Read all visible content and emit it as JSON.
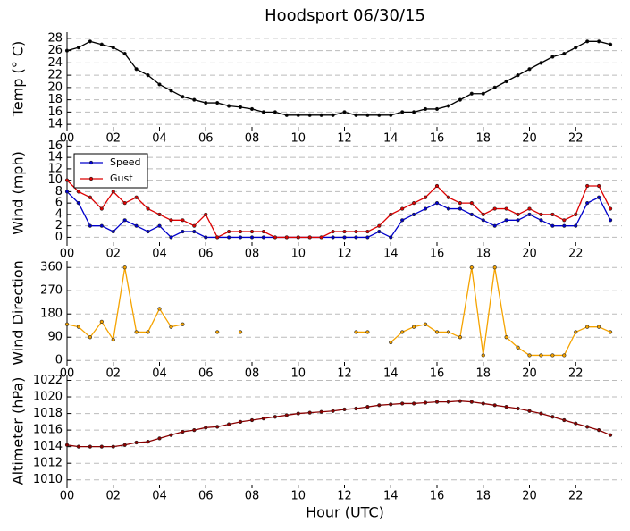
{
  "chart_data": [
    {
      "type": "line",
      "title": "Hoodsport 06/30/15",
      "ylabel": "Temp (° C)",
      "x": [
        0,
        0.5,
        1,
        1.5,
        2,
        2.5,
        3,
        3.5,
        4,
        4.5,
        5,
        5.5,
        6,
        6.5,
        7,
        7.5,
        8,
        8.5,
        9,
        9.5,
        10,
        10.5,
        11,
        11.5,
        12,
        12.5,
        13,
        13.5,
        14,
        14.5,
        15,
        15.5,
        16,
        16.5,
        17,
        17.5,
        18,
        18.5,
        19,
        19.5,
        20,
        20.5,
        21,
        21.5,
        22,
        22.5,
        23,
        23.5
      ],
      "series": [
        {
          "name": "Temp",
          "color": "#000000",
          "values": [
            26,
            26.5,
            27.5,
            27,
            26.5,
            25.5,
            23,
            22,
            20.5,
            19.5,
            18.5,
            18,
            17.5,
            17.5,
            17,
            16.8,
            16.5,
            16,
            16,
            15.5,
            15.5,
            15.5,
            15.5,
            15.5,
            16,
            15.5,
            15.5,
            15.5,
            15.5,
            16,
            16,
            16.5,
            16.5,
            17,
            18,
            19,
            19,
            20,
            21,
            22,
            23,
            24,
            25,
            25.5,
            26.5,
            27.5,
            27.5,
            27
          ]
        }
      ],
      "xlim": [
        0,
        24
      ],
      "xticks": [
        {
          "value": 0,
          "label": "00"
        },
        {
          "value": 2,
          "label": "02"
        },
        {
          "value": 4,
          "label": "04"
        },
        {
          "value": 6,
          "label": "06"
        },
        {
          "value": 8,
          "label": "08"
        },
        {
          "value": 10,
          "label": "10"
        },
        {
          "value": 12,
          "label": "12"
        },
        {
          "value": 14,
          "label": "14"
        },
        {
          "value": 16,
          "label": "16"
        },
        {
          "value": 18,
          "label": "18"
        },
        {
          "value": 20,
          "label": "20"
        },
        {
          "value": 22,
          "label": "22"
        }
      ],
      "ylim": [
        13,
        29
      ],
      "yticks": [
        14,
        16,
        18,
        20,
        22,
        24,
        26,
        28
      ],
      "grid": true
    },
    {
      "type": "line",
      "ylabel": "Wind (mph)",
      "legend": "upper left",
      "x": [
        0,
        0.5,
        1,
        1.5,
        2,
        2.5,
        3,
        3.5,
        4,
        4.5,
        5,
        5.5,
        6,
        6.5,
        7,
        7.5,
        8,
        8.5,
        9,
        9.5,
        10,
        10.5,
        11,
        11.5,
        12,
        12.5,
        13,
        13.5,
        14,
        14.5,
        15,
        15.5,
        16,
        16.5,
        17,
        17.5,
        18,
        18.5,
        19,
        19.5,
        20,
        20.5,
        21,
        21.5,
        22,
        22.5,
        23,
        23.5
      ],
      "series": [
        {
          "name": "Speed",
          "color": "#0000cc",
          "values": [
            8,
            6,
            2,
            2,
            1,
            3,
            2,
            1,
            2,
            0,
            1,
            1,
            0,
            0,
            0,
            0,
            0,
            0,
            0,
            0,
            0,
            0,
            0,
            0,
            0,
            0,
            0,
            1,
            0,
            3,
            4,
            5,
            6,
            5,
            5,
            4,
            3,
            2,
            3,
            3,
            4,
            3,
            2,
            2,
            2,
            6,
            7,
            3
          ]
        },
        {
          "name": "Gust",
          "color": "#dd0000",
          "values": [
            10,
            8,
            7,
            5,
            8,
            6,
            7,
            5,
            4,
            3,
            3,
            2,
            4,
            0,
            1,
            1,
            1,
            1,
            0,
            0,
            0,
            0,
            0,
            1,
            1,
            1,
            1,
            2,
            4,
            5,
            6,
            7,
            9,
            7,
            6,
            6,
            4,
            5,
            5,
            4,
            5,
            4,
            4,
            3,
            4,
            9,
            9,
            5
          ]
        }
      ],
      "xlim": [
        0,
        24
      ],
      "xticks": [
        {
          "value": 0,
          "label": "00"
        },
        {
          "value": 2,
          "label": "02"
        },
        {
          "value": 4,
          "label": "04"
        },
        {
          "value": 6,
          "label": "06"
        },
        {
          "value": 8,
          "label": "08"
        },
        {
          "value": 10,
          "label": "10"
        },
        {
          "value": 12,
          "label": "12"
        },
        {
          "value": 14,
          "label": "14"
        },
        {
          "value": 16,
          "label": "16"
        },
        {
          "value": 18,
          "label": "18"
        },
        {
          "value": 20,
          "label": "20"
        },
        {
          "value": 22,
          "label": "22"
        }
      ],
      "ylim": [
        -1.5,
        17
      ],
      "yticks": [
        0,
        2,
        4,
        6,
        8,
        10,
        12,
        14,
        16
      ],
      "grid": true
    },
    {
      "type": "line",
      "ylabel": "Wind Direction",
      "x": [
        0,
        0.5,
        1,
        1.5,
        2,
        2.5,
        3,
        3.5,
        4,
        4.5,
        5,
        5.5,
        6,
        6.5,
        7,
        7.5,
        8,
        8.5,
        9,
        9.5,
        10,
        10.5,
        11,
        11.5,
        12,
        12.5,
        13,
        13.5,
        14,
        14.5,
        15,
        15.5,
        16,
        16.5,
        17,
        17.5,
        18,
        18.5,
        19,
        19.5,
        20,
        20.5,
        21,
        21.5,
        22,
        22.5,
        23,
        23.5
      ],
      "series": [
        {
          "name": "Direction",
          "color": "#f5a300",
          "values": [
            140,
            130,
            90,
            150,
            80,
            360,
            110,
            110,
            200,
            130,
            140,
            null,
            null,
            110,
            null,
            110,
            null,
            null,
            null,
            null,
            null,
            null,
            null,
            null,
            null,
            110,
            110,
            null,
            70,
            110,
            130,
            140,
            110,
            110,
            90,
            360,
            20,
            360,
            90,
            50,
            20,
            20,
            20,
            20,
            110,
            130,
            130,
            110
          ]
        }
      ],
      "xlim": [
        0,
        24
      ],
      "xticks": [
        {
          "value": 0,
          "label": "00"
        },
        {
          "value": 2,
          "label": "02"
        },
        {
          "value": 4,
          "label": "04"
        },
        {
          "value": 6,
          "label": "06"
        },
        {
          "value": 8,
          "label": "08"
        },
        {
          "value": 10,
          "label": "10"
        },
        {
          "value": 12,
          "label": "12"
        },
        {
          "value": 14,
          "label": "14"
        },
        {
          "value": 16,
          "label": "16"
        },
        {
          "value": 18,
          "label": "18"
        },
        {
          "value": 20,
          "label": "20"
        },
        {
          "value": 22,
          "label": "22"
        }
      ],
      "ylim": [
        -20,
        385
      ],
      "yticks": [
        0,
        90,
        180,
        270,
        360
      ],
      "grid": true
    },
    {
      "type": "line",
      "ylabel": "Altimeter (hPa)",
      "xlabel": "Hour (UTC)",
      "x": [
        0,
        0.5,
        1,
        1.5,
        2,
        2.5,
        3,
        3.5,
        4,
        4.5,
        5,
        5.5,
        6,
        6.5,
        7,
        7.5,
        8,
        8.5,
        9,
        9.5,
        10,
        10.5,
        11,
        11.5,
        12,
        12.5,
        13,
        13.5,
        14,
        14.5,
        15,
        15.5,
        16,
        16.5,
        17,
        17.5,
        18,
        18.5,
        19,
        19.5,
        20,
        20.5,
        21,
        21.5,
        22,
        22.5,
        23,
        23.5
      ],
      "series": [
        {
          "name": "Altimeter",
          "color": "#8b0000",
          "values": [
            1014.2,
            1014,
            1014,
            1014,
            1014,
            1014.2,
            1014.5,
            1014.6,
            1015,
            1015.4,
            1015.8,
            1016,
            1016.3,
            1016.4,
            1016.7,
            1017,
            1017.2,
            1017.4,
            1017.6,
            1017.8,
            1018,
            1018.1,
            1018.2,
            1018.3,
            1018.5,
            1018.6,
            1018.8,
            1019,
            1019.1,
            1019.2,
            1019.2,
            1019.3,
            1019.4,
            1019.4,
            1019.5,
            1019.4,
            1019.2,
            1019,
            1018.8,
            1018.6,
            1018.3,
            1018,
            1017.6,
            1017.2,
            1016.8,
            1016.4,
            1016,
            1015.4
          ]
        }
      ],
      "xlim": [
        0,
        24
      ],
      "xticks": [
        {
          "value": 0,
          "label": "00"
        },
        {
          "value": 2,
          "label": "02"
        },
        {
          "value": 4,
          "label": "04"
        },
        {
          "value": 6,
          "label": "06"
        },
        {
          "value": 8,
          "label": "08"
        },
        {
          "value": 10,
          "label": "10"
        },
        {
          "value": 12,
          "label": "12"
        },
        {
          "value": 14,
          "label": "14"
        },
        {
          "value": 16,
          "label": "16"
        },
        {
          "value": 18,
          "label": "18"
        },
        {
          "value": 20,
          "label": "20"
        },
        {
          "value": 22,
          "label": "22"
        }
      ],
      "ylim": [
        1009,
        1022.7
      ],
      "yticks": [
        1010,
        1012,
        1014,
        1016,
        1018,
        1020,
        1022
      ],
      "grid": true
    }
  ]
}
